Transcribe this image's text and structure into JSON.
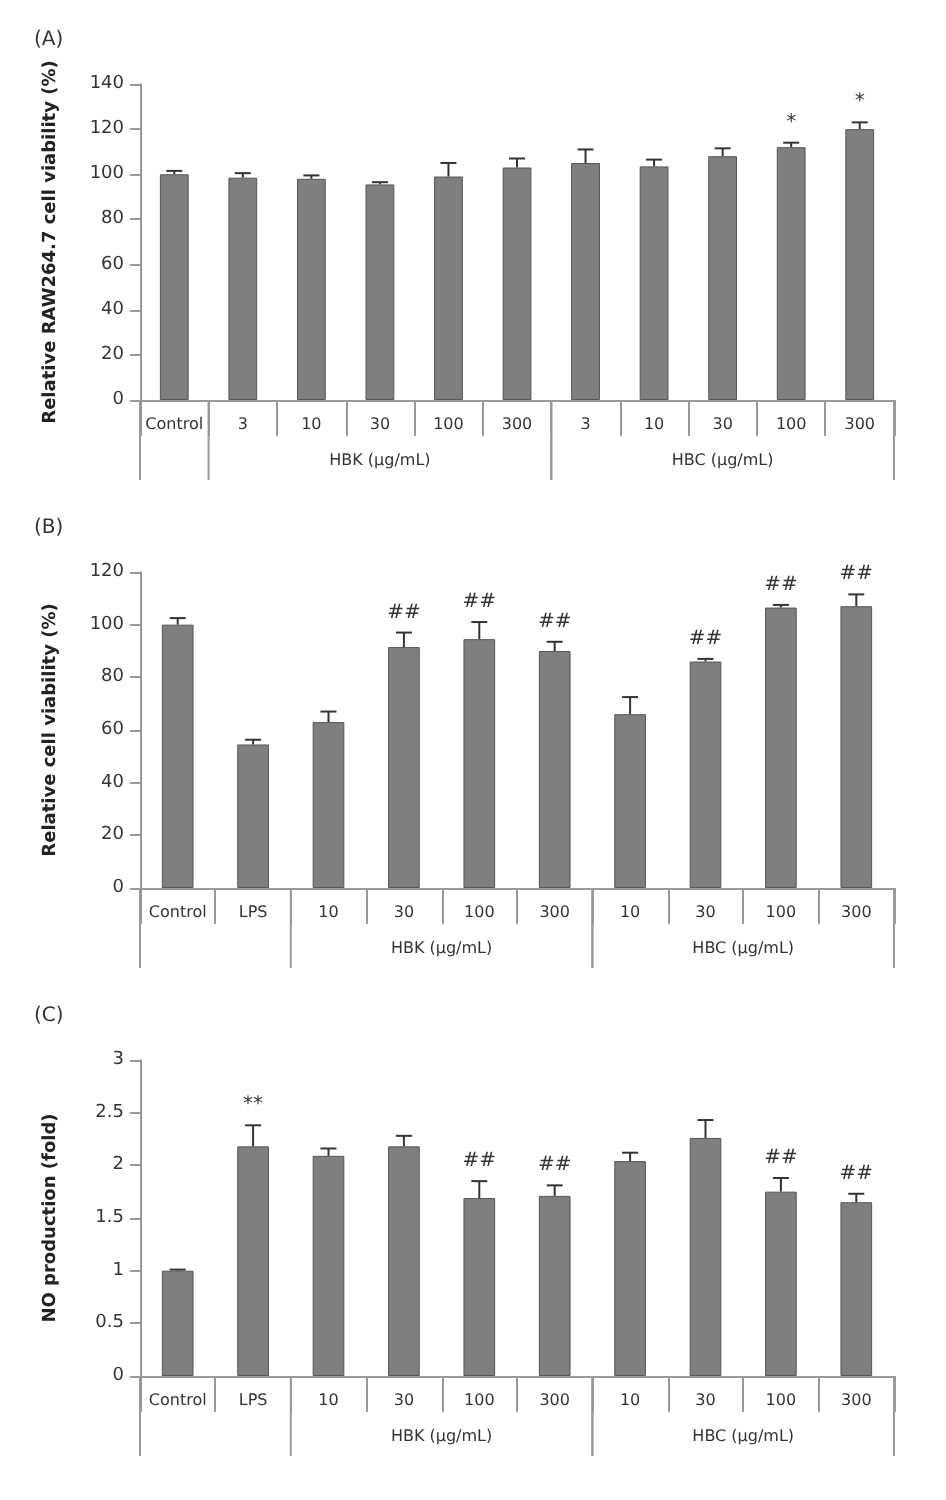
{
  "chart_data": [
    {
      "type": "bar",
      "title": "(A)",
      "ylabel": "Relative RAW264.7 cell viability (%)",
      "categories": [
        "Control",
        "3",
        "10",
        "30",
        "100",
        "300",
        "3",
        "10",
        "30",
        "100",
        "300"
      ],
      "values": [
        100,
        98.5,
        98,
        95.5,
        99,
        103,
        105,
        103.5,
        108,
        112,
        120
      ],
      "errors": [
        [
          100,
          101.5
        ],
        [
          98.5,
          100.5
        ],
        [
          98,
          99.5
        ],
        [
          95.5,
          96.5
        ],
        [
          99,
          105
        ],
        [
          103,
          107
        ],
        [
          105,
          111
        ],
        [
          103.5,
          106.5
        ],
        [
          108,
          111.5
        ],
        [
          112,
          114
        ],
        [
          120,
          123
        ]
      ],
      "value_labels": [
        null,
        null,
        null,
        null,
        null,
        null,
        null,
        null,
        null,
        "*",
        "*"
      ],
      "color": "#7f7f7f",
      "ylim": [
        0,
        140
      ],
      "yticks": [
        0,
        20,
        40,
        60,
        80,
        100,
        120,
        140
      ],
      "grid": false,
      "annotations": [
        "HBK (μg/mL)",
        "HBC (μg/mL)"
      ]
    },
    {
      "type": "bar",
      "title": "(B)",
      "ylabel": "Relative cell viability (%)",
      "categories": [
        "Control",
        "LPS",
        "10",
        "30",
        "100",
        "300",
        "10",
        "30",
        "100",
        "300"
      ],
      "values": [
        100,
        54.5,
        63,
        91.5,
        94.5,
        90,
        66,
        86,
        106.5,
        107
      ],
      "errors": [
        [
          100,
          102.5
        ],
        [
          54.5,
          56.3
        ],
        [
          63,
          67
        ],
        [
          91.5,
          97
        ],
        [
          94.5,
          101
        ],
        [
          90,
          93.5
        ],
        [
          66,
          72.5
        ],
        [
          86,
          87
        ],
        [
          106.5,
          107.5
        ],
        [
          107,
          111.5
        ]
      ],
      "value_labels": [
        null,
        null,
        null,
        "##",
        "##",
        "##",
        null,
        "##",
        "##",
        "##"
      ],
      "color": "#7f7f7f",
      "ylim": [
        0,
        120
      ],
      "yticks": [
        0,
        20,
        40,
        60,
        80,
        100,
        120
      ],
      "grid": false,
      "annotations": [
        "HBK (μg/mL)",
        "HBC (μg/mL)"
      ]
    },
    {
      "type": "bar",
      "title": "(C)",
      "ylabel": "NO production (fold)",
      "categories": [
        "Control",
        "LPS",
        "10",
        "30",
        "100",
        "300",
        "10",
        "30",
        "100",
        "300"
      ],
      "values": [
        1.0,
        2.18,
        2.09,
        2.18,
        1.69,
        1.71,
        2.04,
        2.26,
        1.75,
        1.65
      ],
      "errors": [
        [
          1.0,
          1.01
        ],
        [
          2.18,
          2.38
        ],
        [
          2.09,
          2.16
        ],
        [
          2.18,
          2.28
        ],
        [
          1.69,
          1.85
        ],
        [
          1.71,
          1.81
        ],
        [
          2.04,
          2.12
        ],
        [
          2.26,
          2.43
        ],
        [
          1.75,
          1.88
        ],
        [
          1.65,
          1.73
        ]
      ],
      "value_labels": [
        null,
        "**",
        null,
        null,
        "##",
        "##",
        null,
        null,
        "##",
        "##"
      ],
      "color": "#7f7f7f",
      "ylim": [
        0,
        3
      ],
      "yticks": [
        0,
        0.5,
        1,
        1.5,
        2,
        2.5,
        3
      ],
      "grid": false,
      "annotations": [
        "HBK (μg/mL)",
        "HBC (μg/mL)"
      ]
    }
  ]
}
